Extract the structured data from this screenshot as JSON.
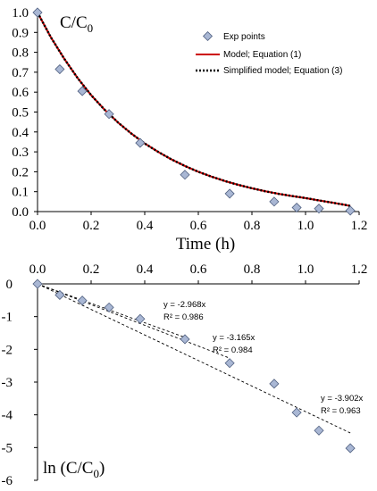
{
  "chart_data": [
    {
      "type": "line",
      "ylabel_main": "C/C",
      "ylabel_sub": "0",
      "xlabel": "Time (h)",
      "xlim": [
        0,
        1.2
      ],
      "ylim": [
        0,
        1.0
      ],
      "x_ticks": [
        "0.0",
        "0.2",
        "0.4",
        "0.6",
        "0.8",
        "1.0",
        "1.2"
      ],
      "y_ticks": [
        "0.0",
        "0.1",
        "0.2",
        "0.3",
        "0.4",
        "0.5",
        "0.6",
        "0.7",
        "0.8",
        "0.9",
        "1.0"
      ],
      "grid": false,
      "legend": "top-right",
      "series": [
        {
          "name": "Exp points",
          "kind": "scatter",
          "color": "#a9b7d4",
          "x": [
            0,
            0.083,
            0.167,
            0.267,
            0.383,
            0.55,
            0.717,
            0.883,
            0.967,
            1.05,
            1.167
          ],
          "y": [
            1.0,
            0.715,
            0.605,
            0.49,
            0.345,
            0.185,
            0.09,
            0.05,
            0.02,
            0.015,
            0.005
          ]
        },
        {
          "name": "Model; Equation (1)",
          "kind": "line",
          "color": "#cc0000",
          "x": [
            0,
            0.05,
            0.1,
            0.15,
            0.2,
            0.25,
            0.3,
            0.35,
            0.4,
            0.45,
            0.5,
            0.55,
            0.6,
            0.65,
            0.7,
            0.75,
            0.8,
            0.85,
            0.9,
            0.95,
            1.0,
            1.05,
            1.1,
            1.15,
            1.167
          ],
          "y": [
            1.0,
            0.875,
            0.767,
            0.67,
            0.585,
            0.512,
            0.448,
            0.392,
            0.342,
            0.3,
            0.262,
            0.229,
            0.2,
            0.175,
            0.153,
            0.134,
            0.117,
            0.102,
            0.089,
            0.078,
            0.068,
            0.056,
            0.045,
            0.033,
            0.028
          ]
        },
        {
          "name": "Simplified model; Equation (3)",
          "kind": "dotted-line",
          "color": "#000000",
          "x": [
            0,
            0.05,
            0.1,
            0.15,
            0.2,
            0.25,
            0.3,
            0.35,
            0.4,
            0.45,
            0.5,
            0.55,
            0.6,
            0.65,
            0.7,
            0.75,
            0.8,
            0.85,
            0.9,
            0.95,
            1.0,
            1.05,
            1.1,
            1.15,
            1.167
          ],
          "y": [
            1.0,
            0.875,
            0.767,
            0.67,
            0.585,
            0.512,
            0.448,
            0.392,
            0.342,
            0.3,
            0.262,
            0.229,
            0.2,
            0.175,
            0.153,
            0.134,
            0.117,
            0.102,
            0.089,
            0.078,
            0.068,
            0.056,
            0.045,
            0.033,
            0.028
          ]
        }
      ]
    },
    {
      "type": "scatter",
      "ylabel_main": "ln (C/C",
      "ylabel_sub": "0",
      "ylabel_close": ")",
      "xlim": [
        0,
        1.2
      ],
      "ylim": [
        -6,
        0
      ],
      "x_ticks": [
        "0.0",
        "0.2",
        "0.4",
        "0.6",
        "0.8",
        "1.0",
        "1.2"
      ],
      "y_ticks": [
        "0",
        "-1",
        "-2",
        "-3",
        "-4",
        "-5",
        "-6"
      ],
      "x_axis_position": "top",
      "grid": false,
      "points": {
        "color": "#a9b7d4",
        "x": [
          0,
          0.083,
          0.167,
          0.267,
          0.383,
          0.55,
          0.717,
          0.883,
          0.967,
          1.05,
          1.167
        ],
        "y": [
          0,
          -0.34,
          -0.51,
          -0.72,
          -1.07,
          -1.69,
          -2.42,
          -3.05,
          -3.93,
          -4.48,
          -5.02
        ]
      },
      "trendlines": [
        {
          "slope": -2.968,
          "x_end": 0.55,
          "equation": "y = -2.968x",
          "r2": "R² = 0.986"
        },
        {
          "slope": -3.165,
          "x_end": 0.717,
          "equation": "y = -3.165x",
          "r2": "R² = 0.984"
        },
        {
          "slope": -3.902,
          "x_end": 1.167,
          "equation": "y = -3.902x",
          "r2": "R² = 0.963"
        }
      ]
    }
  ]
}
